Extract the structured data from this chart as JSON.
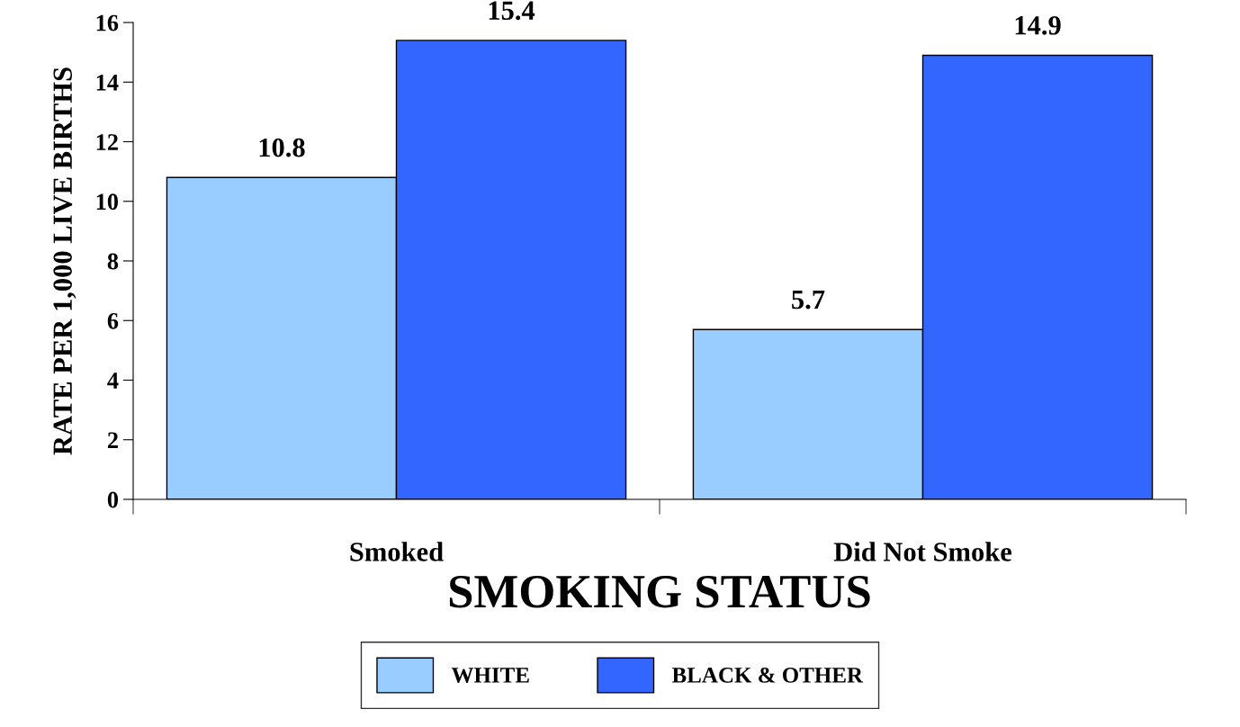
{
  "chart_data": {
    "type": "bar",
    "xlabel": "SMOKING STATUS",
    "ylabel": "RATE PER 1,000 LIVE BIRTHS",
    "categories": [
      "Smoked",
      "Did Not Smoke"
    ],
    "series": [
      {
        "name": "WHITE",
        "color": "#99ccff",
        "values": [
          10.8,
          5.7
        ]
      },
      {
        "name": "BLACK & OTHER",
        "color": "#3366ff",
        "values": [
          15.4,
          14.9
        ]
      }
    ],
    "ylim": [
      0,
      16
    ],
    "yticks": [
      0,
      2,
      4,
      6,
      8,
      10,
      12,
      14,
      16
    ],
    "grid": false,
    "legend": "bottom",
    "data_labels": true
  }
}
